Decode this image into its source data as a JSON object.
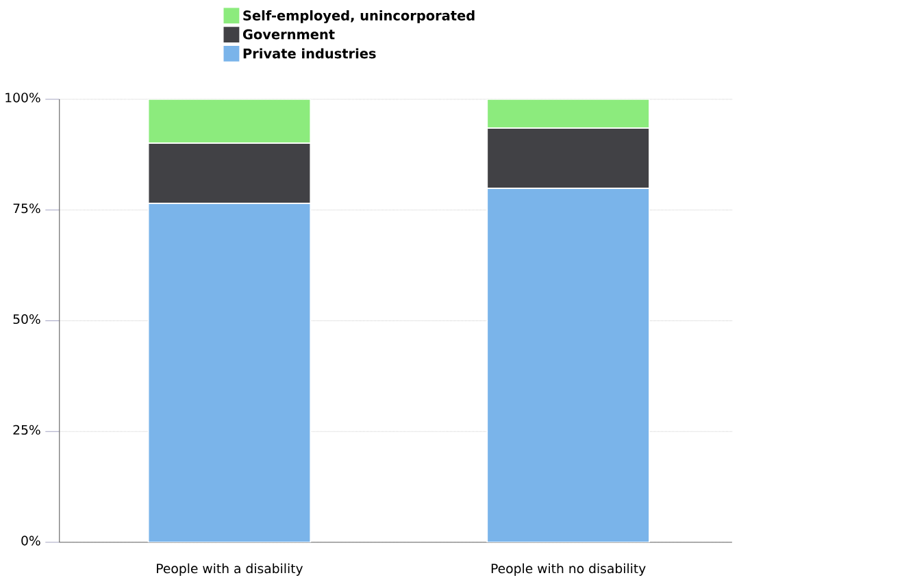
{
  "chart_data": {
    "type": "bar",
    "stacked": true,
    "categories": [
      "People with a disability",
      "People with no disability"
    ],
    "series": [
      {
        "name": "Private industries",
        "color": "#7ab4ea",
        "values": [
          76.5,
          79.9
        ]
      },
      {
        "name": "Government",
        "color": "#414145",
        "values": [
          13.6,
          13.6
        ]
      },
      {
        "name": "Self-employed, unincorporated",
        "color": "#8ceb7d",
        "values": [
          9.9,
          6.5
        ]
      }
    ],
    "ylim": [
      0,
      100
    ],
    "yticks": [
      {
        "value": 0,
        "label": "0%"
      },
      {
        "value": 25,
        "label": "25%"
      },
      {
        "value": 50,
        "label": "50%"
      },
      {
        "value": 75,
        "label": "75%"
      },
      {
        "value": 100,
        "label": "100%"
      }
    ],
    "grid": "y",
    "legend": "top"
  }
}
